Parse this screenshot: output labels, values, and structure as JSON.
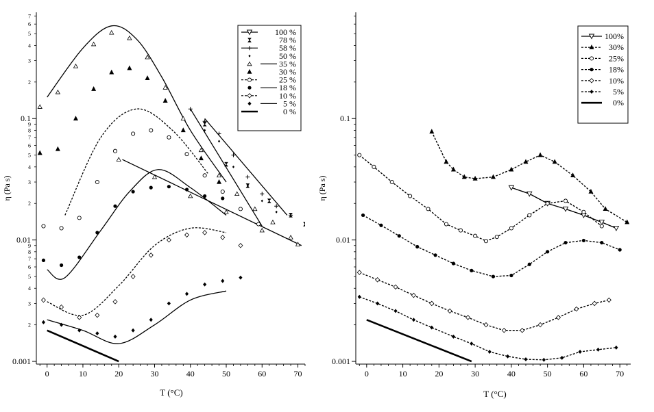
{
  "chart_data": [
    {
      "type": "scatter",
      "xlabel": "T (°C)",
      "ylabel": "η (Pa s)",
      "xlim": [
        -3,
        72
      ],
      "ylim": [
        0.00095,
        0.75
      ],
      "yscale": "log",
      "x_ticks": [
        "0",
        "10",
        "20",
        "30",
        "40",
        "50",
        "60",
        "70"
      ],
      "y_major_ticks": [
        "0.001",
        "0.01",
        "0.1"
      ],
      "y_minor_ticks": [
        "2",
        "3",
        "4",
        "5",
        "6",
        "7",
        "8",
        "9"
      ],
      "y_top_minor_ticks": [
        "2",
        "3",
        "4",
        "5",
        "6",
        "7"
      ],
      "legend_position": "top-right",
      "series": [
        {
          "name": "100 %",
          "style": "line-tri",
          "x": [
            20,
            30,
            40,
            50,
            60,
            70
          ],
          "y": [
            0.046,
            0.033,
            0.023,
            0.017,
            0.012,
            0.0092
          ],
          "line": [
            [
              21,
              0.046
            ],
            [
              71,
              0.009
            ]
          ]
        },
        {
          "name": "78 %",
          "style": "hourglass",
          "x": [
            44,
            50,
            56,
            62,
            68,
            72
          ],
          "y": [
            0.09,
            0.042,
            0.028,
            0.021,
            0.016,
            0.0135
          ]
        },
        {
          "name": "58 %",
          "style": "plus",
          "x": [
            40,
            44,
            48,
            52,
            56,
            60,
            64,
            68
          ],
          "y": [
            0.12,
            0.095,
            0.075,
            0.05,
            0.033,
            0.024,
            0.019,
            0.016
          ],
          "line": [
            [
              40,
              0.12
            ],
            [
              60,
              0.013
            ]
          ]
        },
        {
          "name": "50 %",
          "style": "small-diamond",
          "x": [
            44,
            48,
            52,
            56,
            60,
            64
          ],
          "y": [
            0.08,
            0.065,
            0.04,
            0.028,
            0.021,
            0.017
          ],
          "line": [
            [
              44,
              0.1
            ],
            [
              67,
              0.016
            ]
          ]
        },
        {
          "name": "35 %",
          "style": "open-triangle",
          "x": [
            -2,
            3,
            8,
            13,
            18,
            23,
            28,
            33,
            38,
            43,
            48,
            53,
            58,
            63,
            68
          ],
          "y": [
            0.125,
            0.165,
            0.27,
            0.41,
            0.51,
            0.46,
            0.32,
            0.18,
            0.1,
            0.055,
            0.034,
            0.024,
            0.018,
            0.014,
            0.0105
          ],
          "curve": [
            [
              0,
              0.15
            ],
            [
              10,
              0.38
            ],
            [
              18,
              0.58
            ],
            [
              25,
              0.45
            ],
            [
              32,
              0.22
            ],
            [
              40,
              0.08
            ],
            [
              50,
              0.03
            ]
          ]
        },
        {
          "name": "30 %",
          "style": "filled-triangle",
          "x": [
            -2,
            3,
            8,
            13,
            18,
            23,
            28,
            33,
            38,
            43,
            48
          ],
          "y": [
            0.052,
            0.056,
            0.1,
            0.175,
            0.24,
            0.26,
            0.215,
            0.14,
            0.08,
            0.047,
            0.03
          ]
        },
        {
          "name": "25 %",
          "style": "open-circle",
          "x": [
            -1,
            4,
            9,
            14,
            19,
            24,
            29,
            34,
            39,
            44,
            49,
            54,
            59
          ],
          "y": [
            0.013,
            0.0125,
            0.0152,
            0.03,
            0.054,
            0.075,
            0.08,
            0.07,
            0.051,
            0.034,
            0.025,
            0.018,
            0.0135
          ],
          "curve": [
            [
              5,
              0.016
            ],
            [
              15,
              0.07
            ],
            [
              25,
              0.12
            ],
            [
              35,
              0.08
            ],
            [
              45,
              0.035
            ]
          ]
        },
        {
          "name": "18 %",
          "style": "filled-circle",
          "x": [
            -1,
            4,
            9,
            14,
            19,
            24,
            29,
            34,
            39,
            44,
            49
          ],
          "y": [
            0.0068,
            0.0062,
            0.0072,
            0.0115,
            0.019,
            0.025,
            0.027,
            0.0275,
            0.026,
            0.023,
            0.022
          ],
          "curve": [
            [
              0,
              0.0057
            ],
            [
              5,
              0.0049
            ],
            [
              15,
              0.012
            ],
            [
              23,
              0.025
            ],
            [
              31,
              0.038
            ],
            [
              40,
              0.027
            ],
            [
              50,
              0.016
            ]
          ]
        },
        {
          "name": "10 %",
          "style": "open-diamond",
          "x": [
            -1,
            4,
            9,
            14,
            19,
            24,
            29,
            34,
            39,
            44,
            49,
            54
          ],
          "y": [
            0.0032,
            0.0028,
            0.0023,
            0.0024,
            0.0031,
            0.005,
            0.0075,
            0.01,
            0.011,
            0.0115,
            0.0105,
            0.009
          ],
          "curve": [
            [
              0,
              0.0031
            ],
            [
              10,
              0.0024
            ],
            [
              20,
              0.0042
            ],
            [
              30,
              0.009
            ],
            [
              40,
              0.0125
            ],
            [
              50,
              0.0115
            ]
          ]
        },
        {
          "name": "5 %",
          "style": "filled-diamond",
          "x": [
            -1,
            4,
            9,
            14,
            19,
            24,
            29,
            34,
            39,
            44,
            49,
            54
          ],
          "y": [
            0.0021,
            0.002,
            0.0018,
            0.0017,
            0.0016,
            0.0018,
            0.0022,
            0.003,
            0.0036,
            0.0043,
            0.0046,
            0.0049
          ],
          "curve": [
            [
              0,
              0.0022
            ],
            [
              10,
              0.0018
            ],
            [
              20,
              0.0014
            ],
            [
              30,
              0.002
            ],
            [
              40,
              0.0032
            ],
            [
              50,
              0.0038
            ]
          ]
        },
        {
          "name": "0 %",
          "style": "thick-line",
          "line": [
            [
              0,
              0.0018
            ],
            [
              20,
              0.001
            ]
          ]
        }
      ]
    },
    {
      "type": "line",
      "xlabel": "T (°C)",
      "ylabel": "η (Pa s)",
      "xlim": [
        -3,
        73
      ],
      "ylim": [
        0.00095,
        0.75
      ],
      "yscale": "log",
      "x_ticks": [
        "0",
        "10",
        "20",
        "30",
        "40",
        "50",
        "60",
        "70"
      ],
      "y_major_ticks": [
        "0.001",
        "0.01",
        "0.1"
      ],
      "legend_position": "top-right",
      "series": [
        {
          "name": "100%",
          "style": "solid-open-tri-down",
          "x": [
            40,
            45,
            50,
            55,
            60,
            65,
            69
          ],
          "y": [
            0.027,
            0.024,
            0.02,
            0.018,
            0.016,
            0.014,
            0.0125
          ]
        },
        {
          "name": "30%",
          "style": "dashed-filled-triangle",
          "x": [
            18,
            22,
            24,
            27,
            30,
            35,
            40,
            44,
            48,
            52,
            57,
            62,
            66,
            72
          ],
          "y": [
            0.078,
            0.044,
            0.038,
            0.033,
            0.032,
            0.033,
            0.038,
            0.044,
            0.05,
            0.044,
            0.034,
            0.025,
            0.018,
            0.014
          ]
        },
        {
          "name": "25%",
          "style": "dashed-open-circle",
          "x": [
            -2,
            2,
            7,
            12,
            17,
            22,
            26,
            30,
            33,
            36,
            40,
            45,
            50,
            55,
            60,
            65
          ],
          "y": [
            0.05,
            0.04,
            0.03,
            0.023,
            0.018,
            0.0135,
            0.012,
            0.0108,
            0.0098,
            0.0106,
            0.0125,
            0.016,
            0.02,
            0.021,
            0.017,
            0.013
          ]
        },
        {
          "name": "18%",
          "style": "dashed-filled-circle",
          "x": [
            -1,
            4,
            9,
            14,
            19,
            24,
            29,
            35,
            40,
            45,
            50,
            55,
            60,
            65,
            70
          ],
          "y": [
            0.016,
            0.0132,
            0.0108,
            0.0088,
            0.0075,
            0.0064,
            0.0056,
            0.005,
            0.0051,
            0.0063,
            0.008,
            0.0095,
            0.0099,
            0.0095,
            0.0083
          ]
        },
        {
          "name": "10%",
          "style": "dashed-open-diamond",
          "x": [
            -2,
            3,
            8,
            13,
            18,
            23,
            28,
            33,
            38,
            43,
            48,
            53,
            58,
            63,
            67
          ],
          "y": [
            0.0054,
            0.0047,
            0.0041,
            0.0035,
            0.003,
            0.0026,
            0.0023,
            0.002,
            0.0018,
            0.0018,
            0.002,
            0.0023,
            0.0027,
            0.003,
            0.0032
          ]
        },
        {
          "name": "5%",
          "style": "dashed-filled-diamond",
          "x": [
            -2,
            3,
            8,
            13,
            18,
            24,
            29,
            34,
            39,
            44,
            49,
            54,
            59,
            64,
            69
          ],
          "y": [
            0.0034,
            0.003,
            0.0026,
            0.0022,
            0.0019,
            0.0016,
            0.0014,
            0.0012,
            0.0011,
            0.00104,
            0.00103,
            0.00107,
            0.0012,
            0.00125,
            0.0013
          ]
        },
        {
          "name": "0%",
          "style": "thick-line",
          "line": [
            [
              0,
              0.0022
            ],
            [
              29,
              0.001
            ]
          ]
        }
      ]
    }
  ]
}
